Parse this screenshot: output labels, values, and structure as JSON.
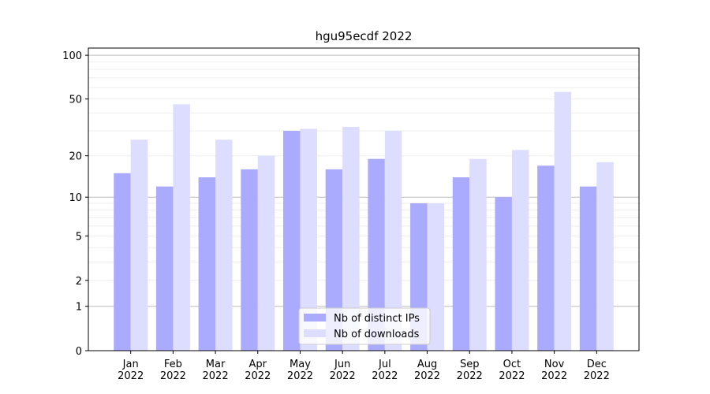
{
  "chart_data": {
    "type": "bar",
    "title": "hgu95ecdf 2022",
    "categories": [
      "Jan\n2022",
      "Feb\n2022",
      "Mar\n2022",
      "Apr\n2022",
      "May\n2022",
      "Jun\n2022",
      "Jul\n2022",
      "Aug\n2022",
      "Sep\n2022",
      "Oct\n2022",
      "Nov\n2022",
      "Dec\n2022"
    ],
    "series": [
      {
        "name": "Nb of distinct IPs",
        "color": "#aaaaff",
        "values": [
          15,
          12,
          14,
          16,
          30,
          16,
          19,
          9,
          14,
          10,
          17,
          12
        ]
      },
      {
        "name": "Nb of downloads",
        "color": "#ddddff",
        "values": [
          26,
          46,
          26,
          20,
          31,
          32,
          30,
          9,
          19,
          22,
          56,
          18
        ]
      }
    ],
    "yscale": "log1p",
    "ylim": [
      0,
      112
    ],
    "yticks": [
      0,
      1,
      2,
      5,
      10,
      20,
      50,
      100
    ],
    "major_grid": [
      1,
      10,
      100
    ],
    "minor_grid": [
      2,
      3,
      4,
      5,
      6,
      7,
      8,
      9,
      20,
      30,
      40,
      50,
      60,
      70,
      80,
      90
    ],
    "grid": true,
    "legend": "lower center"
  }
}
